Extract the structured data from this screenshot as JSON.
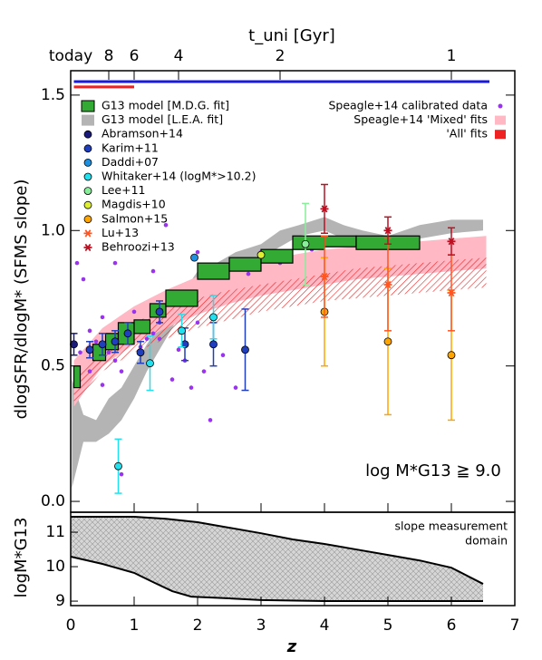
{
  "chart_data": [
    {
      "type": "scatter",
      "ylabel": "dlogSFR/dlogM* (SFMS slope)",
      "x2label": "t_uni [Gyr]",
      "annotation": "log M*G13 ≧ 9.0",
      "xlim": [
        0,
        7
      ],
      "ylim": [
        -0.04,
        1.59
      ],
      "yticks": [
        {
          "value": 0,
          "label": "0.0"
        },
        0.5,
        {
          "value": 1,
          "label": "1.0"
        },
        1.5
      ],
      "x2ticks": [
        {
          "value": 0,
          "label": "today"
        },
        {
          "value": 0.6,
          "label": "8"
        },
        {
          "value": 1.0,
          "label": "6"
        },
        {
          "value": 1.7,
          "label": "4"
        },
        {
          "value": 3.3,
          "label": "2"
        },
        {
          "value": 6.0,
          "label": "1"
        }
      ],
      "ranges": [
        {
          "color": "#1a1adf",
          "x": [
            0.05,
            6.6
          ],
          "y": 1.55
        },
        {
          "color": "#ee2222",
          "x": [
            0.05,
            1.0
          ],
          "y": 1.53
        }
      ],
      "bands": [
        {
          "name": "G13 model [L.E.A. fit]",
          "color": "#b4b4b4",
          "hatch": false,
          "x": [
            0.02,
            0.2,
            0.4,
            0.6,
            0.8,
            1.0,
            1.2,
            1.5,
            1.8,
            2.0,
            2.3,
            2.6,
            3.0,
            3.3,
            3.6,
            4.0,
            4.3,
            4.6,
            5.0,
            5.5,
            6.0,
            6.5
          ],
          "upper": [
            0.45,
            0.32,
            0.3,
            0.38,
            0.42,
            0.5,
            0.58,
            0.68,
            0.78,
            0.85,
            0.88,
            0.92,
            0.95,
            1.0,
            1.02,
            1.05,
            1.02,
            1.0,
            0.98,
            1.02,
            1.04,
            1.04
          ],
          "lower": [
            0.05,
            0.22,
            0.22,
            0.25,
            0.3,
            0.38,
            0.48,
            0.6,
            0.72,
            0.8,
            0.83,
            0.88,
            0.9,
            0.94,
            0.98,
            1.0,
            0.97,
            0.95,
            0.94,
            0.97,
            0.99,
            1.0
          ]
        },
        {
          "name": "Speagle+14 'Mixed' fits",
          "color": "#ffb8c4",
          "hatch": false,
          "x": [
            0.05,
            0.5,
            1,
            1.5,
            2,
            2.5,
            3,
            3.5,
            4,
            4.5,
            5,
            5.5,
            6,
            6.55
          ],
          "upper": [
            0.52,
            0.64,
            0.72,
            0.78,
            0.83,
            0.86,
            0.89,
            0.91,
            0.93,
            0.94,
            0.95,
            0.96,
            0.97,
            0.98
          ],
          "lower": [
            0.35,
            0.5,
            0.58,
            0.64,
            0.69,
            0.73,
            0.76,
            0.78,
            0.8,
            0.82,
            0.83,
            0.84,
            0.85,
            0.86
          ]
        },
        {
          "name": "'All' fits",
          "color": "#ee2222",
          "hatch": true,
          "x": [
            0.05,
            0.5,
            1,
            1.5,
            2,
            2.5,
            3,
            3.5,
            4,
            4.5,
            5,
            5.5,
            6,
            6.55
          ],
          "upper": [
            0.45,
            0.58,
            0.66,
            0.71,
            0.75,
            0.78,
            0.8,
            0.82,
            0.84,
            0.86,
            0.87,
            0.88,
            0.89,
            0.9
          ],
          "lower": [
            0.36,
            0.48,
            0.55,
            0.6,
            0.64,
            0.67,
            0.7,
            0.72,
            0.74,
            0.75,
            0.76,
            0.77,
            0.78,
            0.79
          ]
        }
      ],
      "speagle": {
        "name": "Speagle+14 calibrated data",
        "color": "#9933ee",
        "x": [
          0.1,
          0.2,
          0.3,
          0.4,
          0.5,
          0.6,
          0.7,
          0.8,
          0.8,
          0.9,
          1.0,
          1.1,
          1.2,
          1.3,
          1.4,
          1.6,
          1.7,
          1.8,
          1.9,
          2.0,
          2.1,
          2.2,
          2.3,
          2.4,
          2.6,
          2.8,
          3.0,
          3.3,
          3.8,
          1.5,
          0.7,
          1.4,
          0.3,
          0.15,
          0.5,
          1.3,
          2.0
        ],
        "values": [
          0.88,
          0.82,
          0.63,
          0.59,
          0.68,
          0.55,
          0.52,
          0.1,
          0.48,
          0.6,
          0.7,
          0.57,
          0.6,
          0.62,
          0.66,
          0.45,
          0.56,
          0.52,
          0.42,
          0.66,
          0.48,
          0.3,
          0.83,
          0.54,
          0.42,
          0.84,
          0.92,
          0.88,
          0.93,
          1.02,
          0.88,
          0.6,
          0.48,
          0.55,
          0.43,
          0.85,
          0.92
        ]
      },
      "boxes": {
        "name": "G13 model [M.D.G. fit]",
        "color": "#33aa33",
        "xlow": [
          0.05,
          0.35,
          0.55,
          0.75,
          1.0,
          1.25,
          1.5,
          2.0,
          2.5,
          3.0,
          3.5,
          4.0,
          4.5
        ],
        "xhigh": [
          0.15,
          0.55,
          0.75,
          1.0,
          1.25,
          1.5,
          2.0,
          2.5,
          3.0,
          3.5,
          4.0,
          4.5,
          5.5
        ],
        "ylow": [
          0.42,
          0.52,
          0.56,
          0.58,
          0.62,
          0.68,
          0.72,
          0.82,
          0.85,
          0.88,
          0.93,
          0.94,
          0.93
        ],
        "yhigh": [
          0.5,
          0.58,
          0.62,
          0.66,
          0.67,
          0.73,
          0.78,
          0.88,
          0.9,
          0.93,
          0.98,
          0.98,
          0.98
        ]
      },
      "series": [
        {
          "name": "Abramson+14",
          "color": "#1a1a7a",
          "marker": "circle",
          "x": [
            0.05
          ],
          "values": [
            0.58
          ],
          "errors": [
            0.04
          ]
        },
        {
          "name": "Karim+11",
          "color": "#1f3fbf",
          "marker": "circle",
          "x": [
            0.3,
            0.5,
            0.7,
            0.9,
            1.1,
            1.4,
            1.8,
            2.25,
            2.75
          ],
          "values": [
            0.56,
            0.58,
            0.59,
            0.62,
            0.55,
            0.7,
            0.58,
            0.58,
            0.56
          ],
          "errors": [
            0.03,
            0.04,
            0.04,
            0.04,
            0.04,
            0.04,
            0.06,
            0.08,
            0.15
          ]
        },
        {
          "name": "Daddi+07",
          "color": "#1f8fdf",
          "marker": "circle",
          "x": [
            1.95
          ],
          "values": [
            0.9
          ]
        },
        {
          "name": "Whitaker+14 (logM*>10.2)",
          "color": "#22e0ee",
          "marker": "circle",
          "x": [
            0.75,
            1.25,
            1.75,
            2.25
          ],
          "values": [
            0.13,
            0.51,
            0.63,
            0.68
          ],
          "errors": [
            0.1,
            0.1,
            0.06,
            0.08
          ]
        },
        {
          "name": "Lee+11",
          "color": "#88ee99",
          "marker": "circle",
          "x": [
            3.7
          ],
          "values": [
            0.95
          ],
          "errors": [
            0.15
          ]
        },
        {
          "name": "Magdis+10",
          "color": "#ddee33",
          "marker": "circle",
          "x": [
            3.0
          ],
          "values": [
            0.91
          ]
        },
        {
          "name": "Salmon+15",
          "color": "#ffa500",
          "marker": "circle",
          "x": [
            4.0,
            5.0,
            6.0
          ],
          "values": [
            0.7,
            0.59,
            0.54
          ],
          "errors": [
            0.2,
            0.27,
            0.24
          ]
        },
        {
          "name": "Lu+13",
          "color": "#ff5522",
          "marker": "asterisk",
          "x": [
            4.0,
            5.0,
            6.0
          ],
          "values": [
            0.83,
            0.8,
            0.77
          ],
          "errors": [
            0.15,
            0.17,
            0.14
          ]
        },
        {
          "name": "Behroozi+13",
          "color": "#bb1122",
          "marker": "asterisk",
          "x": [
            4.0,
            5.0,
            6.0
          ],
          "values": [
            1.08,
            1.0,
            0.96
          ],
          "errors": [
            0.09,
            0.05,
            0.05
          ]
        }
      ]
    },
    {
      "type": "area",
      "ylabel": "logM*G13",
      "xlabel": "z",
      "annotation": [
        "slope measurement",
        "domain"
      ],
      "xlim": [
        0,
        7
      ],
      "ylim": [
        8.87,
        11.58
      ],
      "xticks": [
        0,
        1,
        2,
        3,
        4,
        5,
        6,
        7
      ],
      "yticks": [
        9,
        10,
        11
      ],
      "color": "#d6d6d6",
      "upper": {
        "x": [
          0,
          0.5,
          1,
          1.5,
          2,
          2.5,
          3,
          3.5,
          4,
          4.5,
          5,
          5.5,
          6,
          6.5
        ],
        "values": [
          11.45,
          11.45,
          11.45,
          11.39,
          11.29,
          11.13,
          10.97,
          10.79,
          10.66,
          10.5,
          10.34,
          10.18,
          9.97,
          9.5
        ]
      },
      "lower": {
        "x": [
          0,
          0.5,
          1,
          1.3,
          1.6,
          1.9,
          2.5,
          3,
          4,
          5,
          6,
          6.5
        ],
        "values": [
          10.29,
          10.08,
          9.82,
          9.55,
          9.29,
          9.13,
          9.08,
          9.03,
          9.0,
          9.0,
          9.0,
          9.0
        ]
      }
    }
  ]
}
